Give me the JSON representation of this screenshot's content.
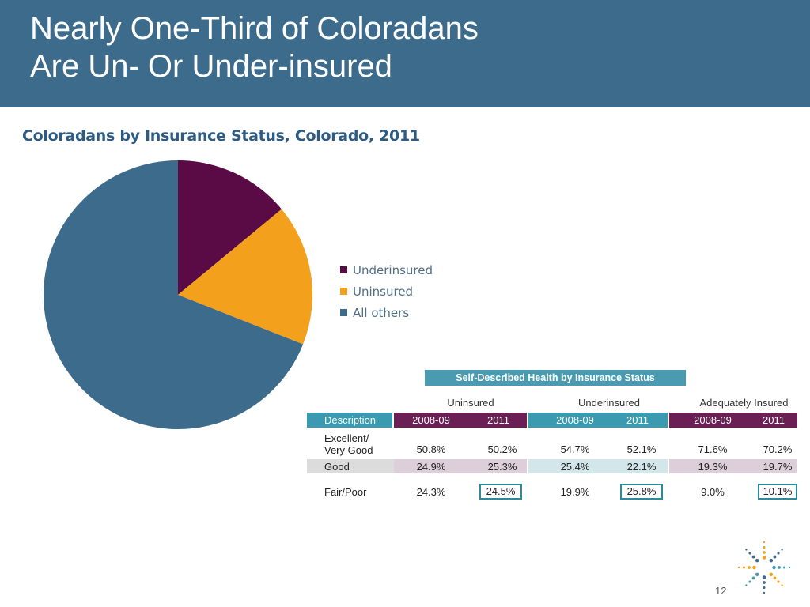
{
  "header": {
    "title_line1": "Nearly One-Third of Coloradans",
    "title_line2": "Are Un- Or Under-insured"
  },
  "colors": {
    "header_bg": "#3d6b8c",
    "underinsured": "#5a0a45",
    "uninsured": "#f3a11d",
    "all_others": "#3d6b8c",
    "table_teal": "#3a9bb0",
    "table_plum": "#6b1f55"
  },
  "chart_data": [
    {
      "type": "pie",
      "title": "Coloradans by Insurance Status, Colorado, 2011",
      "categories": [
        "Underinsured",
        "Uninsured",
        "All others"
      ],
      "values": [
        14,
        17,
        69
      ],
      "colors": [
        "#5a0a45",
        "#f3a11d",
        "#3d6b8c"
      ],
      "legend": "right"
    },
    {
      "type": "table",
      "title": "Self-Described Health by Insurance Status",
      "groups": [
        "Uninsured",
        "Underinsured",
        "Adequately Insured"
      ],
      "columns": [
        "Description",
        "2008-09",
        "2011",
        "2008-09",
        "2011",
        "2008-09",
        "2011"
      ],
      "rows": [
        {
          "description_line1": "Excellent/",
          "description_line2": "Very Good",
          "values": [
            "50.8%",
            "50.2%",
            "54.7%",
            "52.1%",
            "71.6%",
            "70.2%"
          ]
        },
        {
          "description_line1": "Good",
          "description_line2": "",
          "values": [
            "24.9%",
            "25.3%",
            "25.4%",
            "22.1%",
            "19.3%",
            "19.7%"
          ]
        },
        {
          "description_line1": "Fair/Poor",
          "description_line2": "",
          "values": [
            "24.3%",
            "24.5%",
            "19.9%",
            "25.8%",
            "9.0%",
            "10.1%"
          ]
        }
      ]
    }
  ],
  "legend": {
    "items": [
      {
        "label": "Underinsured",
        "color": "#5a0a45"
      },
      {
        "label": "Uninsured",
        "color": "#f3a11d"
      },
      {
        "label": "All others",
        "color": "#3d6b8c"
      }
    ]
  },
  "footer": {
    "page_number": "12",
    "logo_icon": "starburst-logo-icon"
  }
}
